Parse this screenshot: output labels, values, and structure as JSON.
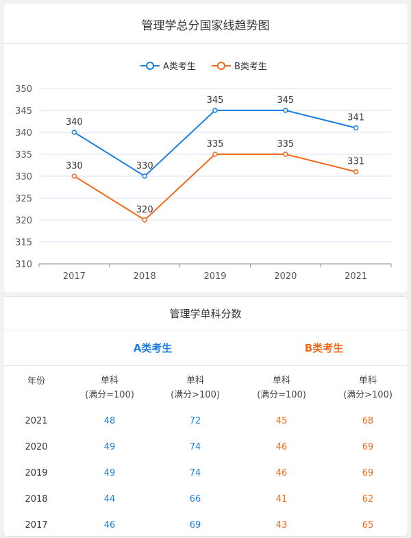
{
  "colors": {
    "a": "#1a7fe0",
    "b": "#f06a1b",
    "grid": "#dbe2f3",
    "axis": "#888888",
    "text": "#444444"
  },
  "chart_data": {
    "type": "line",
    "title": "管理学总分国家线趋势图",
    "categories": [
      "2017",
      "2018",
      "2019",
      "2020",
      "2021"
    ],
    "series": [
      {
        "name": "A类考生",
        "values": [
          340,
          330,
          345,
          345,
          341
        ]
      },
      {
        "name": "B类考生",
        "values": [
          330,
          320,
          335,
          335,
          331
        ]
      }
    ],
    "y_ticks": [
      310,
      315,
      320,
      325,
      330,
      335,
      340,
      345,
      350
    ],
    "ylim": [
      310,
      350
    ],
    "legend_position": "top-center",
    "xlabel": "",
    "ylabel": ""
  },
  "table": {
    "title": "管理学单科分数",
    "group_a": "A类考生",
    "group_b": "B类考生",
    "year_header": "年份",
    "col_headers": [
      {
        "line1": "单科",
        "line2": "(满分=100)"
      },
      {
        "line1": "单科",
        "line2": "(满分>100)"
      },
      {
        "line1": "单科",
        "line2": "(满分=100)"
      },
      {
        "line1": "单科",
        "line2": "(满分>100)"
      }
    ],
    "rows": [
      {
        "year": "2021",
        "values": [
          "48",
          "72",
          "45",
          "68"
        ]
      },
      {
        "year": "2020",
        "values": [
          "49",
          "74",
          "46",
          "69"
        ]
      },
      {
        "year": "2019",
        "values": [
          "49",
          "74",
          "46",
          "69"
        ]
      },
      {
        "year": "2018",
        "values": [
          "44",
          "66",
          "41",
          "62"
        ]
      },
      {
        "year": "2017",
        "values": [
          "46",
          "69",
          "43",
          "65"
        ]
      }
    ]
  }
}
